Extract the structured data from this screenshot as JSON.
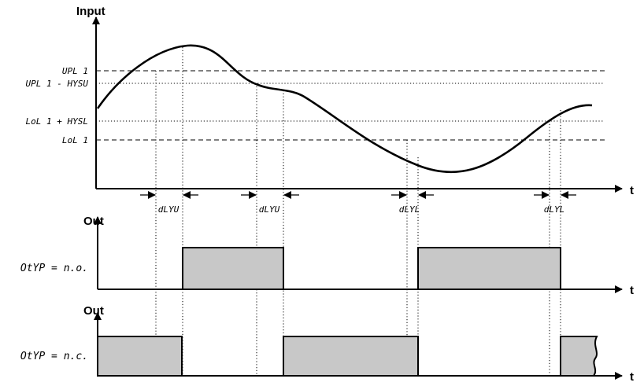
{
  "top": {
    "y_label": "Input",
    "x_label": "t",
    "thresholds": {
      "upl1": "UPL 1",
      "upl1_hysu": "UPL 1 - HYSU",
      "lol1_hysl": "LoL 1 + HYSL",
      "lol1": "LoL 1"
    },
    "delays": [
      "dLYU",
      "dLYU",
      "dLYL",
      "dLYL"
    ]
  },
  "middle": {
    "y_label": "Out",
    "x_label": "t",
    "mode_label": "OtYP = n.o."
  },
  "bottom": {
    "y_label": "Out",
    "x_label": "t",
    "mode_label": "OtYP = n.c."
  },
  "colors": {
    "pulse_fill": "#c8c8c8",
    "line": "#000000"
  }
}
